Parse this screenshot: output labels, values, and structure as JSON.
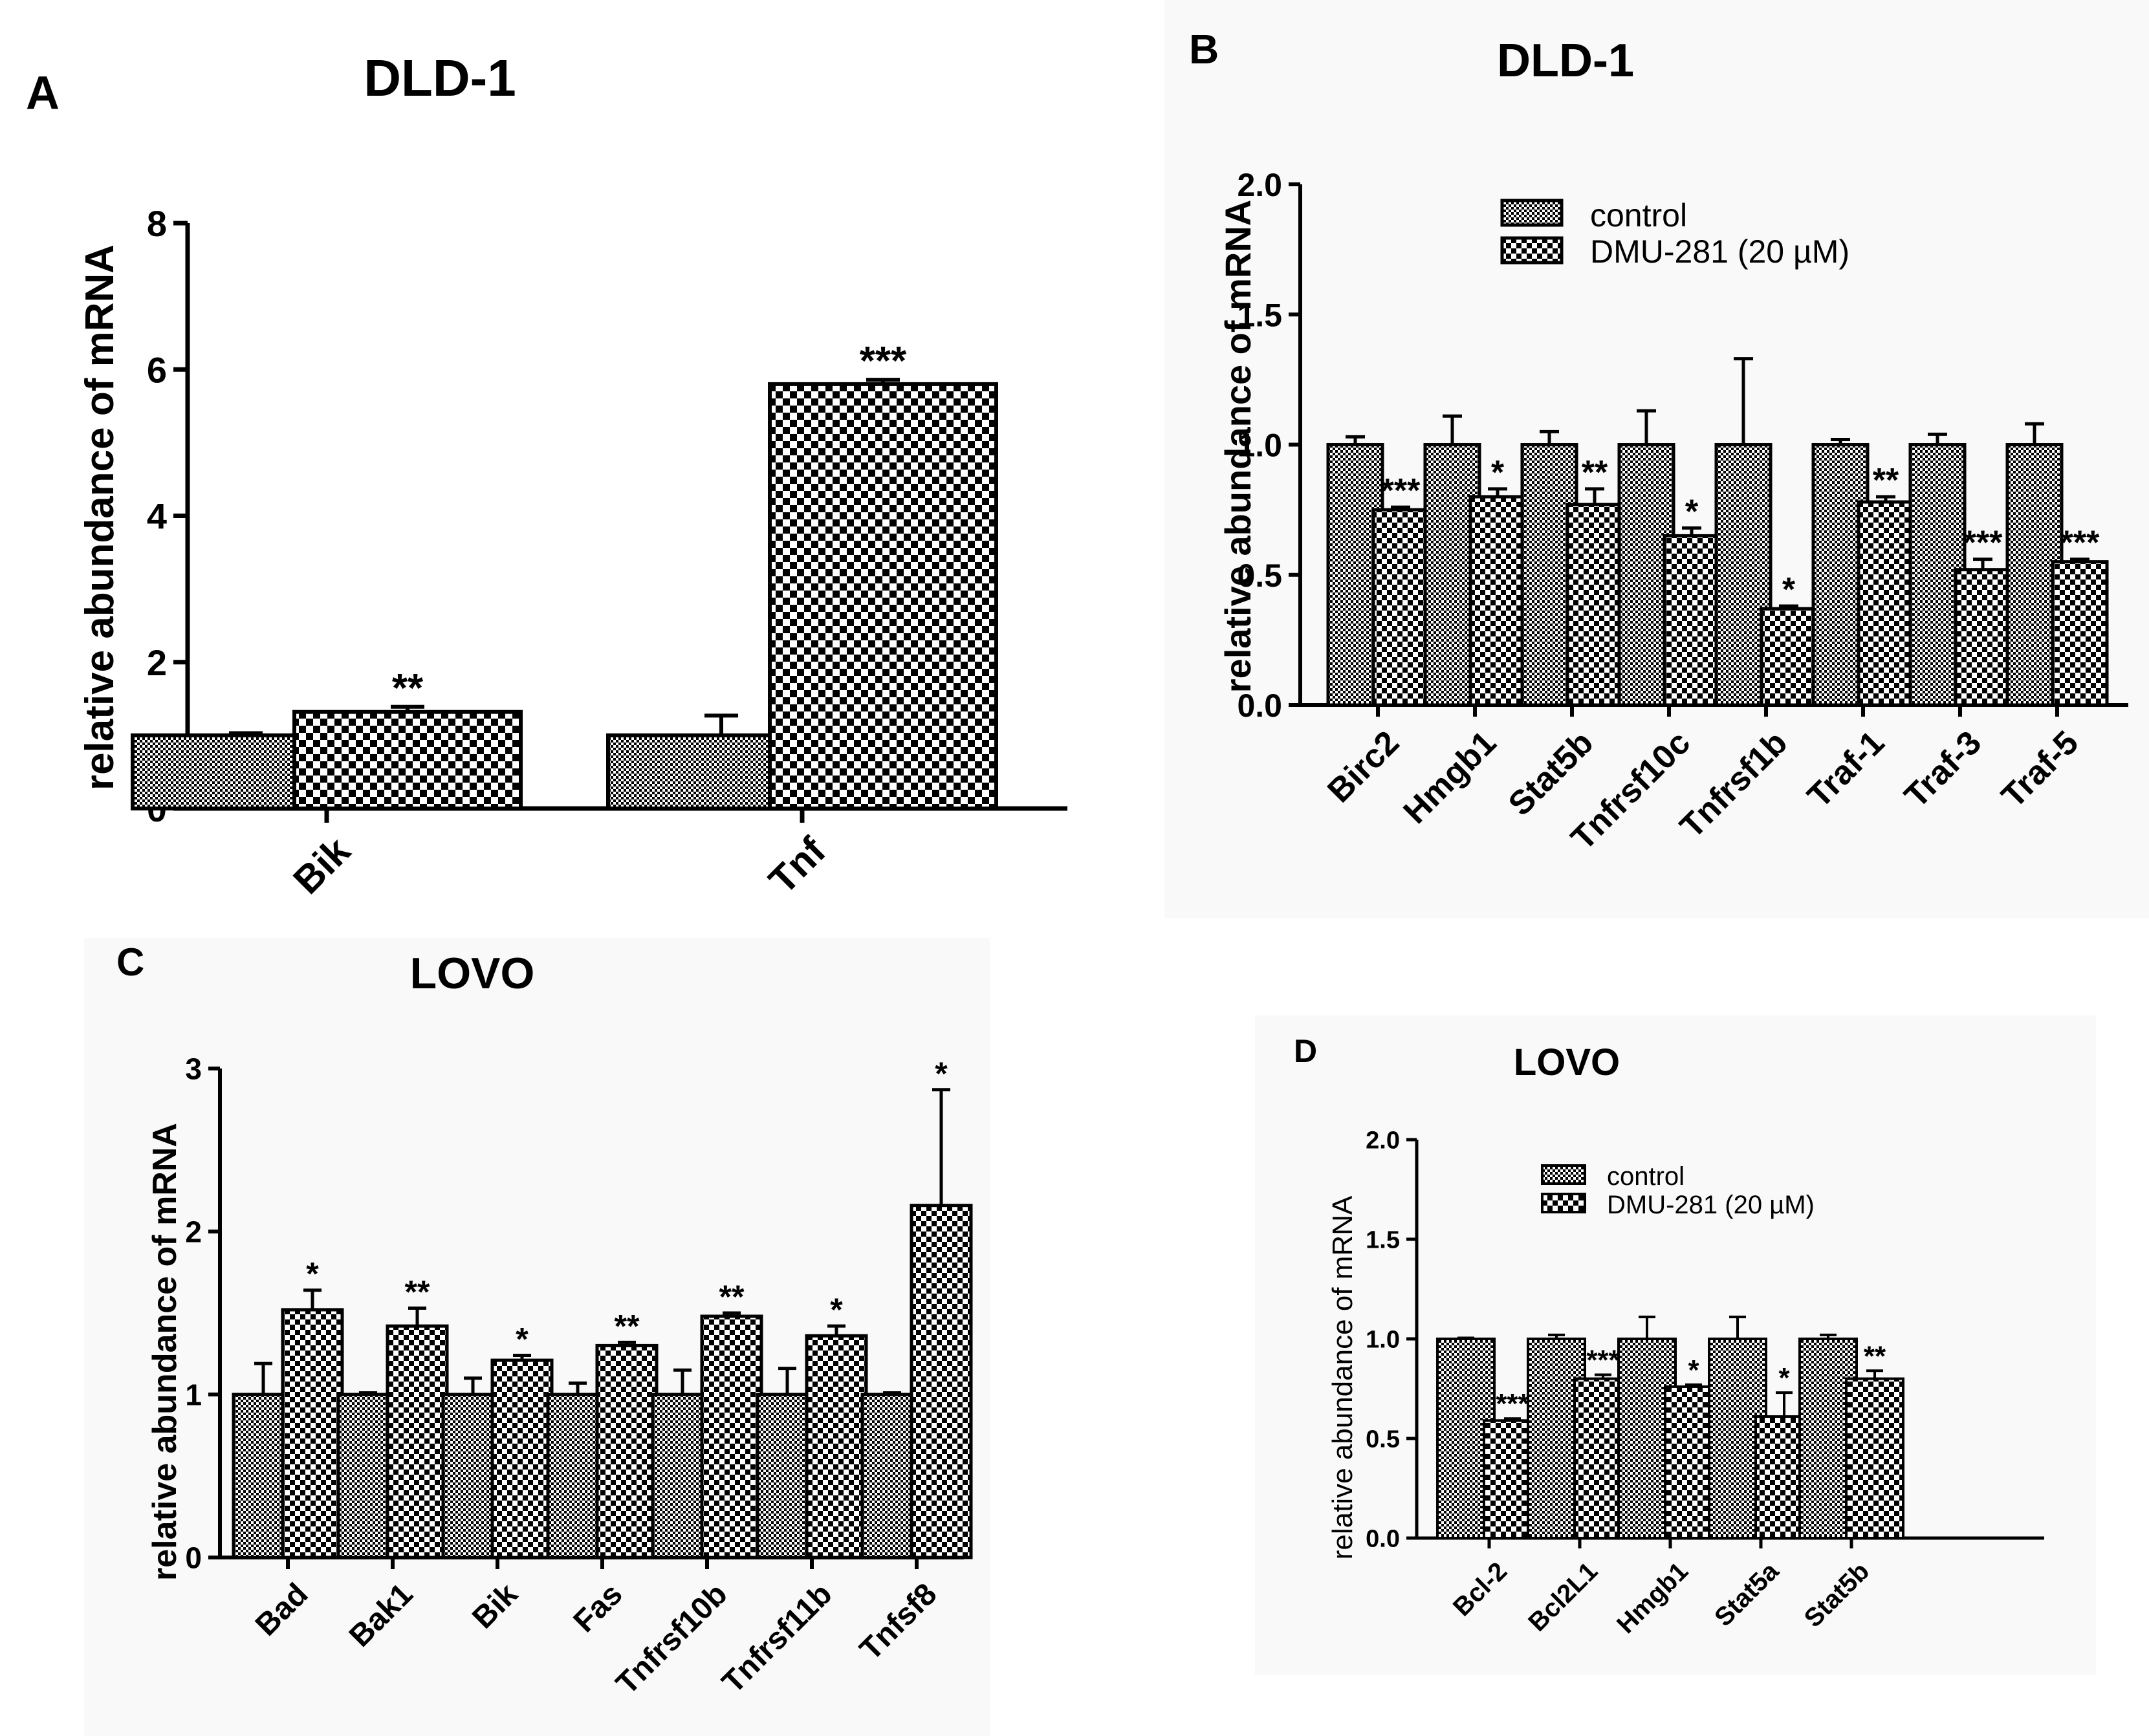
{
  "colors": {
    "ink": "#000000",
    "panel_background": "#f9f9f9",
    "control_fill": "#ffffff",
    "treated_fill": "#ffffff"
  },
  "legend": {
    "control": "control",
    "treated": "DMU-281 (20 µM)"
  },
  "chart_data": [
    {
      "panel": "A",
      "type": "bar",
      "title": "DLD-1",
      "xlabel": "",
      "ylabel": "relative abundance of mRNA",
      "ylim": [
        0,
        8
      ],
      "yticks": [
        "0",
        "2",
        "4",
        "6",
        "8"
      ],
      "categories": [
        "Bik",
        "Tnf"
      ],
      "series": [
        {
          "name": "control",
          "values": [
            1.0,
            1.0
          ],
          "errors": [
            0.03,
            0.27
          ]
        },
        {
          "name": "DMU-281 (20 µM)",
          "values": [
            1.32,
            5.8
          ],
          "errors": [
            0.07,
            0.06
          ]
        }
      ],
      "annotations": [
        "**",
        "***"
      ],
      "legend_visible": false
    },
    {
      "panel": "B",
      "type": "bar",
      "title": "DLD-1",
      "xlabel": "",
      "ylabel": "relative abundance of mRNA",
      "ylim": [
        0,
        2.0
      ],
      "yticks": [
        "0.0",
        "0.5",
        "1.0",
        "1.5",
        "2.0"
      ],
      "categories": [
        "Birc2",
        "Hmgb1",
        "Stat5b",
        "Tnfrsf10c",
        "Tnfrsf1b",
        "Traf-1",
        "Traf-3",
        "Traf-5"
      ],
      "series": [
        {
          "name": "control",
          "values": [
            1.0,
            1.0,
            1.0,
            1.0,
            1.0,
            1.0,
            1.0,
            1.0
          ],
          "errors": [
            0.03,
            0.11,
            0.05,
            0.13,
            0.33,
            0.02,
            0.04,
            0.08
          ]
        },
        {
          "name": "DMU-281 (20 µM)",
          "values": [
            0.75,
            0.8,
            0.77,
            0.65,
            0.37,
            0.78,
            0.52,
            0.55
          ],
          "errors": [
            0.01,
            0.03,
            0.06,
            0.03,
            0.01,
            0.02,
            0.04,
            0.01
          ]
        }
      ],
      "annotations": [
        "***",
        "*",
        "**",
        "*",
        "*",
        "**",
        "***",
        "***"
      ],
      "legend_visible": true,
      "legend_position": "top-right"
    },
    {
      "panel": "C",
      "type": "bar",
      "title": "LOVO",
      "xlabel": "",
      "ylabel": "relative abundance of mRNA",
      "ylim": [
        0,
        3
      ],
      "yticks": [
        "0",
        "1",
        "2",
        "3"
      ],
      "categories": [
        "Bad",
        "Bak1",
        "Bik",
        "Fas",
        "Tnfrsf10b",
        "Tnfrsf11b",
        "Tnfsf8"
      ],
      "series": [
        {
          "name": "control",
          "values": [
            1.0,
            1.0,
            1.0,
            1.0,
            1.0,
            1.0,
            1.0
          ],
          "errors": [
            0.19,
            0.01,
            0.1,
            0.07,
            0.15,
            0.16,
            0.01
          ]
        },
        {
          "name": "DMU-281 (20 µM)",
          "values": [
            1.52,
            1.42,
            1.21,
            1.3,
            1.48,
            1.36,
            2.16
          ],
          "errors": [
            0.12,
            0.11,
            0.03,
            0.02,
            0.02,
            0.06,
            0.71
          ]
        }
      ],
      "annotations": [
        "*",
        "**",
        "*",
        "**",
        "**",
        "*",
        "*"
      ],
      "legend_visible": false
    },
    {
      "panel": "D",
      "type": "bar",
      "title": "LOVO",
      "xlabel": "",
      "ylabel": "relative abundance of mRNA",
      "ylim": [
        0,
        2.0
      ],
      "yticks": [
        "0.0",
        "0.5",
        "1.0",
        "1.5",
        "2.0"
      ],
      "categories": [
        "Bcl-2",
        "Bcl2L1",
        "Hmgb1",
        "Stat5a",
        "Stat5b"
      ],
      "series": [
        {
          "name": "control",
          "values": [
            1.0,
            1.0,
            1.0,
            1.0,
            1.0
          ],
          "errors": [
            0.005,
            0.02,
            0.11,
            0.11,
            0.02
          ]
        },
        {
          "name": "DMU-281 (20 µM)",
          "values": [
            0.59,
            0.8,
            0.76,
            0.61,
            0.8
          ],
          "errors": [
            0.01,
            0.02,
            0.01,
            0.12,
            0.04
          ]
        }
      ],
      "annotations": [
        "***",
        "***",
        "*",
        "*",
        "**"
      ],
      "legend_visible": true,
      "legend_position": "top-right"
    }
  ]
}
